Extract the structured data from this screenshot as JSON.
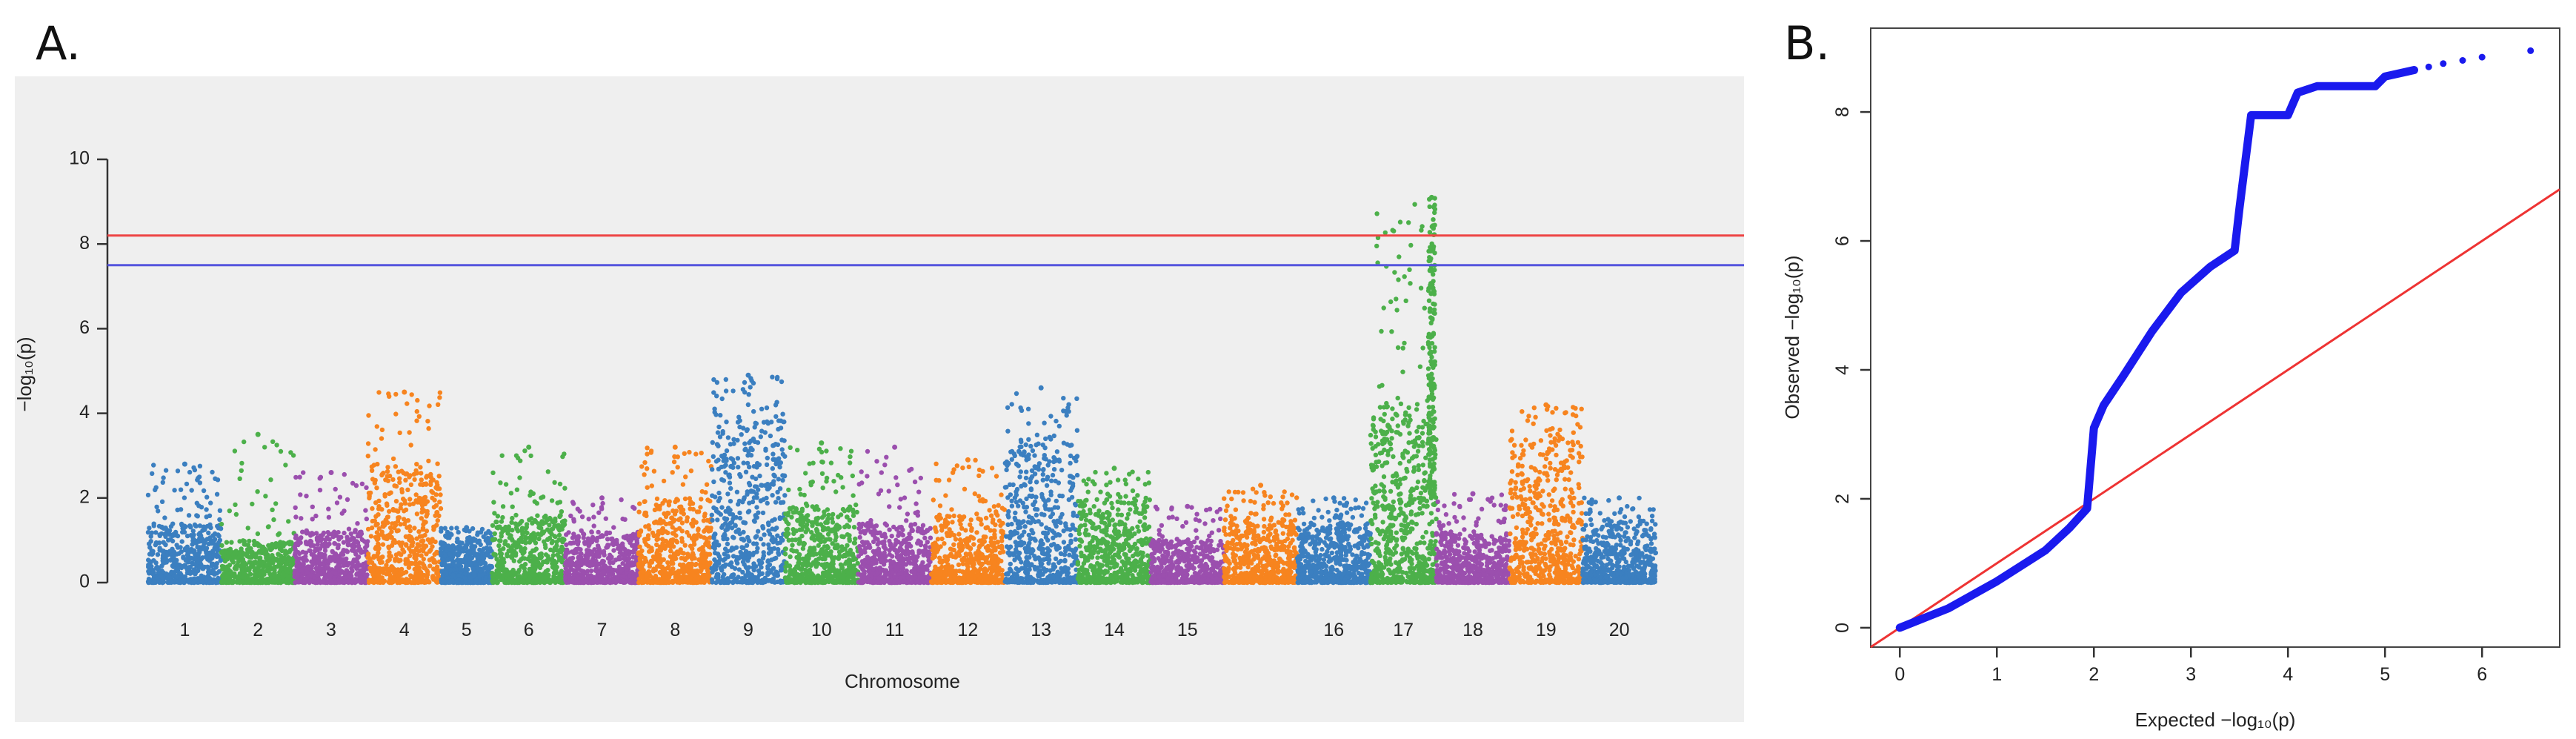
{
  "panel_a_label": "A.",
  "panel_b_label": "B.",
  "colors": {
    "chromosomes": [
      "#3b7fc0",
      "#4cb04a",
      "#9b4fae",
      "#f7841f"
    ],
    "threshold_red": "#ee4444",
    "threshold_blue": "#5555dd",
    "qq_points": "#1a1aee",
    "qq_line": "#ee3333",
    "panel_a_background": "#efefef"
  },
  "chart_data": [
    {
      "type": "scatter",
      "subtype": "manhattan",
      "title": "",
      "xlabel": "Chromosome",
      "ylabel": "−log₁₀(p)",
      "ylim": [
        0,
        10
      ],
      "y_ticks": [
        "0",
        "2",
        "4",
        "6",
        "8",
        "10"
      ],
      "grid": false,
      "thresholds": [
        {
          "color": "red",
          "value": 8.2
        },
        {
          "color": "blue",
          "value": 7.5
        }
      ],
      "chromosomes": [
        {
          "label": "1",
          "show_label": true,
          "max": 2.8,
          "base": 1.4,
          "color_index": 0
        },
        {
          "label": "2",
          "show_label": true,
          "max": 3.5,
          "base": 1.0,
          "color_index": 1
        },
        {
          "label": "3",
          "show_label": true,
          "max": 2.6,
          "base": 1.2,
          "color_index": 2
        },
        {
          "label": "4",
          "show_label": true,
          "max": 4.5,
          "base": 2.8,
          "color_index": 3
        },
        {
          "label": "5",
          "show_label": true,
          "max": 1.3,
          "base": 1.0,
          "color_index": 0
        },
        {
          "label": "6",
          "show_label": true,
          "max": 3.2,
          "base": 1.6,
          "color_index": 1
        },
        {
          "label": "7",
          "show_label": true,
          "max": 2.0,
          "base": 1.2,
          "color_index": 2
        },
        {
          "label": "8",
          "show_label": true,
          "max": 3.2,
          "base": 2.0,
          "color_index": 3
        },
        {
          "label": "9",
          "show_label": true,
          "max": 4.9,
          "base": 3.8,
          "color_index": 0
        },
        {
          "label": "10",
          "show_label": true,
          "max": 3.3,
          "base": 1.8,
          "color_index": 1
        },
        {
          "label": "11",
          "show_label": true,
          "max": 3.2,
          "base": 1.4,
          "color_index": 2
        },
        {
          "label": "12",
          "show_label": true,
          "max": 2.9,
          "base": 1.6,
          "color_index": 3
        },
        {
          "label": "13",
          "show_label": true,
          "max": 4.6,
          "base": 3.3,
          "color_index": 0
        },
        {
          "label": "14",
          "show_label": true,
          "max": 2.7,
          "base": 2.0,
          "color_index": 1
        },
        {
          "label": "15",
          "show_label": true,
          "max": 1.8,
          "base": 1.0,
          "color_index": 2
        },
        {
          "label": "",
          "show_label": false,
          "max": 2.3,
          "base": 1.5,
          "color_index": 3
        },
        {
          "label": "16",
          "show_label": true,
          "max": 2.0,
          "base": 1.4,
          "color_index": 0
        },
        {
          "label": "17",
          "show_label": true,
          "max": 9.1,
          "base": 4.3,
          "color_index": 1
        },
        {
          "label": "18",
          "show_label": true,
          "max": 2.1,
          "base": 1.2,
          "color_index": 2
        },
        {
          "label": "19",
          "show_label": true,
          "max": 4.2,
          "base": 3.4,
          "color_index": 3
        },
        {
          "label": "20",
          "show_label": true,
          "max": 2.0,
          "base": 1.5,
          "color_index": 0
        }
      ]
    },
    {
      "type": "scatter",
      "subtype": "qq",
      "title": "",
      "xlabel": "Expected  −log₁₀(p)",
      "ylabel": "Observed  −log₁₀(p)",
      "xlim": [
        -0.3,
        6.8
      ],
      "ylim": [
        -0.3,
        9.3
      ],
      "x_ticks": [
        "0",
        "1",
        "2",
        "3",
        "4",
        "5",
        "6"
      ],
      "y_ticks": [
        "0",
        "2",
        "4",
        "6",
        "8"
      ],
      "reference_line": {
        "slope": 1.0,
        "intercept": 0.0
      },
      "curve": [
        {
          "x": 0.0,
          "y": 0.0
        },
        {
          "x": 0.5,
          "y": 0.3
        },
        {
          "x": 1.0,
          "y": 0.72
        },
        {
          "x": 1.5,
          "y": 1.2
        },
        {
          "x": 1.75,
          "y": 1.55
        },
        {
          "x": 1.93,
          "y": 1.85
        },
        {
          "x": 2.0,
          "y": 3.1
        },
        {
          "x": 2.1,
          "y": 3.45
        },
        {
          "x": 2.3,
          "y": 3.9
        },
        {
          "x": 2.6,
          "y": 4.6
        },
        {
          "x": 2.9,
          "y": 5.2
        },
        {
          "x": 3.2,
          "y": 5.6
        },
        {
          "x": 3.45,
          "y": 5.85
        },
        {
          "x": 3.5,
          "y": 6.5
        },
        {
          "x": 3.62,
          "y": 7.95
        },
        {
          "x": 4.0,
          "y": 7.95
        },
        {
          "x": 4.1,
          "y": 8.3
        },
        {
          "x": 4.3,
          "y": 8.4
        },
        {
          "x": 4.9,
          "y": 8.4
        },
        {
          "x": 5.0,
          "y": 8.55
        },
        {
          "x": 5.3,
          "y": 8.65
        }
      ],
      "outliers": [
        {
          "x": 5.45,
          "y": 8.7
        },
        {
          "x": 5.6,
          "y": 8.75
        },
        {
          "x": 5.8,
          "y": 8.8
        },
        {
          "x": 6.0,
          "y": 8.85
        },
        {
          "x": 6.5,
          "y": 8.95
        }
      ]
    }
  ]
}
